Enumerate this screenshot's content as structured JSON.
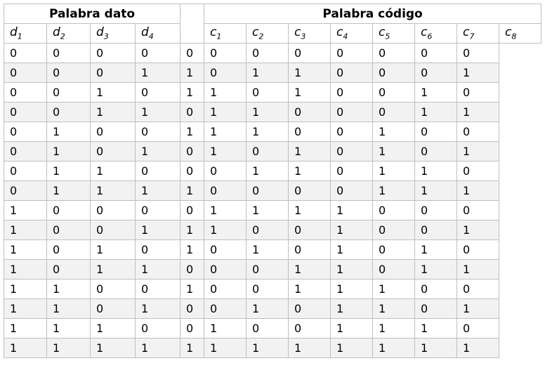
{
  "group_headers": {
    "data_word": "Palabra dato",
    "code_word": "Palabra código"
  },
  "data_columns": [
    {
      "letter": "d",
      "index": "1"
    },
    {
      "letter": "d",
      "index": "2"
    },
    {
      "letter": "d",
      "index": "3"
    },
    {
      "letter": "d",
      "index": "4"
    }
  ],
  "code_columns": [
    {
      "letter": "c",
      "index": "1"
    },
    {
      "letter": "c",
      "index": "2"
    },
    {
      "letter": "c",
      "index": "3"
    },
    {
      "letter": "c",
      "index": "4"
    },
    {
      "letter": "c",
      "index": "5"
    },
    {
      "letter": "c",
      "index": "6"
    },
    {
      "letter": "c",
      "index": "7"
    },
    {
      "letter": "c",
      "index": "8"
    }
  ],
  "rows": [
    {
      "d": [
        "0",
        "0",
        "0",
        "0"
      ],
      "c": [
        "0",
        "0",
        "0",
        "0",
        "0",
        "0",
        "0",
        "0"
      ]
    },
    {
      "d": [
        "0",
        "0",
        "0",
        "1"
      ],
      "c": [
        "1",
        "0",
        "1",
        "1",
        "0",
        "0",
        "0",
        "1"
      ]
    },
    {
      "d": [
        "0",
        "0",
        "1",
        "0"
      ],
      "c": [
        "1",
        "1",
        "0",
        "1",
        "0",
        "0",
        "1",
        "0"
      ]
    },
    {
      "d": [
        "0",
        "0",
        "1",
        "1"
      ],
      "c": [
        "0",
        "1",
        "1",
        "0",
        "0",
        "0",
        "1",
        "1"
      ]
    },
    {
      "d": [
        "0",
        "1",
        "0",
        "0"
      ],
      "c": [
        "1",
        "1",
        "1",
        "0",
        "0",
        "1",
        "0",
        "0"
      ]
    },
    {
      "d": [
        "0",
        "1",
        "0",
        "1"
      ],
      "c": [
        "0",
        "1",
        "0",
        "1",
        "0",
        "1",
        "0",
        "1"
      ]
    },
    {
      "d": [
        "0",
        "1",
        "1",
        "0"
      ],
      "c": [
        "0",
        "0",
        "1",
        "1",
        "0",
        "1",
        "1",
        "0"
      ]
    },
    {
      "d": [
        "0",
        "1",
        "1",
        "1"
      ],
      "c": [
        "1",
        "0",
        "0",
        "0",
        "0",
        "1",
        "1",
        "1"
      ]
    },
    {
      "d": [
        "1",
        "0",
        "0",
        "0"
      ],
      "c": [
        "0",
        "1",
        "1",
        "1",
        "1",
        "0",
        "0",
        "0"
      ]
    },
    {
      "d": [
        "1",
        "0",
        "0",
        "1"
      ],
      "c": [
        "1",
        "1",
        "0",
        "0",
        "1",
        "0",
        "0",
        "1"
      ]
    },
    {
      "d": [
        "1",
        "0",
        "1",
        "0"
      ],
      "c": [
        "1",
        "0",
        "1",
        "0",
        "1",
        "0",
        "1",
        "0"
      ]
    },
    {
      "d": [
        "1",
        "0",
        "1",
        "1"
      ],
      "c": [
        "0",
        "0",
        "0",
        "1",
        "1",
        "0",
        "1",
        "1"
      ]
    },
    {
      "d": [
        "1",
        "1",
        "0",
        "0"
      ],
      "c": [
        "1",
        "0",
        "0",
        "1",
        "1",
        "1",
        "0",
        "0"
      ]
    },
    {
      "d": [
        "1",
        "1",
        "0",
        "1"
      ],
      "c": [
        "0",
        "0",
        "1",
        "0",
        "1",
        "1",
        "0",
        "1"
      ]
    },
    {
      "d": [
        "1",
        "1",
        "1",
        "0"
      ],
      "c": [
        "0",
        "1",
        "0",
        "0",
        "1",
        "1",
        "1",
        "0"
      ]
    },
    {
      "d": [
        "1",
        "1",
        "1",
        "1"
      ],
      "c": [
        "1",
        "1",
        "1",
        "1",
        "1",
        "1",
        "1",
        "1"
      ]
    }
  ]
}
